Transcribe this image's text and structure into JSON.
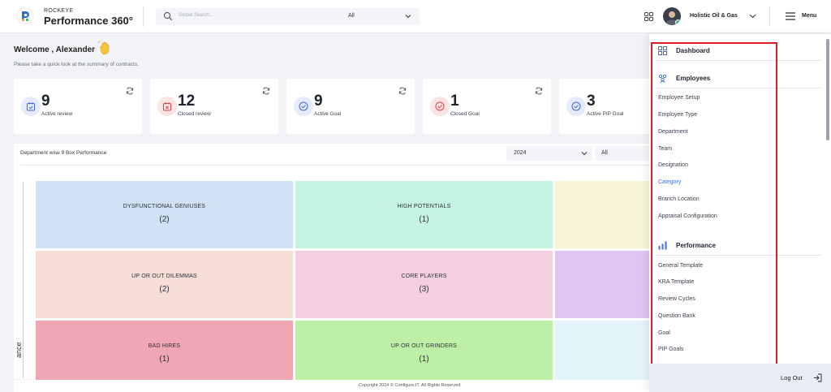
{
  "header": {
    "brand_small": "ROCKEYE",
    "brand_big": "Performance 360°",
    "search_placeholder": "Global Search...",
    "search_scope": "All",
    "org_name": "Holistic Oil & Gas",
    "menu_label": "Menu"
  },
  "welcome": {
    "title": "Welcome , Alexander",
    "subtitle": "Please take a quick look at the summary of contracts."
  },
  "cards": [
    {
      "value": "9",
      "label": "Active review",
      "icon_bg": "#e6ebfb",
      "icon_color": "#4066d6",
      "icon": "calendar-check-icon"
    },
    {
      "value": "12",
      "label": "Closed review",
      "icon_bg": "#fbe4e4",
      "icon_color": "#d64545",
      "icon": "calendar-x-icon"
    },
    {
      "value": "9",
      "label": "Active Goal",
      "icon_bg": "#e6ebfb",
      "icon_color": "#4066d6",
      "icon": "check-circle-icon"
    },
    {
      "value": "1",
      "label": "Closed Goal",
      "icon_bg": "#fbe4e4",
      "icon_color": "#d64545",
      "icon": "check-circle-icon"
    },
    {
      "value": "3",
      "label": "Active PIP Goal",
      "icon_bg": "#e6ebfb",
      "icon_color": "#4066d6",
      "icon": "check-circle-icon"
    }
  ],
  "ninebox": {
    "title": "Department wise 9 Box Performance",
    "year": "2024",
    "filter": "All",
    "axis_label": "ance",
    "boxes": [
      {
        "title": "DYSFUNCTIONAL GENIUSES",
        "count": "(2)",
        "color": "#cfe1f3"
      },
      {
        "title": "HIGH POTENTIALS",
        "count": "(1)",
        "color": "#c6f4e2"
      },
      {
        "title": "",
        "count": "",
        "color": "#f7f4d6"
      },
      {
        "title": "UP OR OUT DILEMMAS",
        "count": "(2)",
        "color": "#f6ddd6"
      },
      {
        "title": "CORE PLAYERS",
        "count": "(3)",
        "color": "#f3cfe1"
      },
      {
        "title": "",
        "count": "",
        "color": "#e1c4ef"
      },
      {
        "title": "BAD HIRES",
        "count": "(1)",
        "color": "#f1a6b4"
      },
      {
        "title": "UP OR OUT GRINDERS",
        "count": "(1)",
        "color": "#bdf0a6"
      },
      {
        "title": "",
        "count": "",
        "color": "#e4f4fb"
      }
    ]
  },
  "footer": {
    "text": "Copyright 2024 © Configure.IT. All Rights Reserved"
  },
  "side_menu": {
    "dashboard": "Dashboard",
    "employees": "Employees",
    "employee_items": [
      "Employee Setup",
      "Employee Type",
      "Department",
      "Team",
      "Designation",
      "Category",
      "Branch Location",
      "Appraisal Configuration"
    ],
    "performance": "Performance",
    "performance_items": [
      "General Template",
      "KRA Template",
      "Review Cycles",
      "Question Bank",
      "Goal",
      "PIP Goals"
    ],
    "active_item": "Category",
    "logout": "Log Out"
  }
}
